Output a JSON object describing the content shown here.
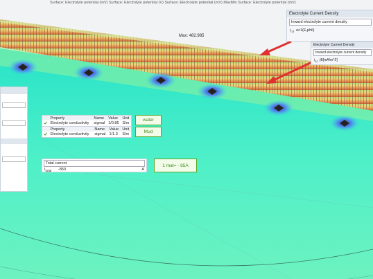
{
  "view": {
    "header": "Surface: Electrolyte potential (mV)  Surface: Electrolyte potential (V)  Surface: Electrolyte potential (mV)  MaxMin Surface: Electrolyte potential (mV)",
    "max_label": "Max:",
    "max_value": 482.985
  },
  "panels": [
    {
      "title": "Electrolyte Current Density",
      "select": "Inward electrolyte current density",
      "symbol": "i",
      "subscript": "n,l",
      "expression": "ec1(E,phil)"
    },
    {
      "title": "Electrolyte Current Density",
      "select": "Inward electrolyte current density",
      "symbol": "i",
      "subscript": "n,l",
      "expression": "jB[mA/m^2]"
    }
  ],
  "tables": [
    {
      "headers": [
        "Property",
        "Name",
        "Value",
        "Unit"
      ],
      "rows": [
        [
          "Electrolyte conductivity",
          "sigmal",
          "1/0.85",
          "S/m"
        ]
      ],
      "note": "water"
    },
    {
      "headers": [
        "Property",
        "Name",
        "Value",
        "Unit"
      ],
      "rows": [
        [
          "Electrolyte conductivity",
          "sigmal",
          "1/1.3",
          "S/m"
        ]
      ],
      "note": "Mud"
    }
  ],
  "total_current": {
    "select": "Total current",
    "symbol": "I",
    "subscript": "total",
    "value": -850,
    "unit": "A",
    "note": "1 mat= - 85A"
  }
}
